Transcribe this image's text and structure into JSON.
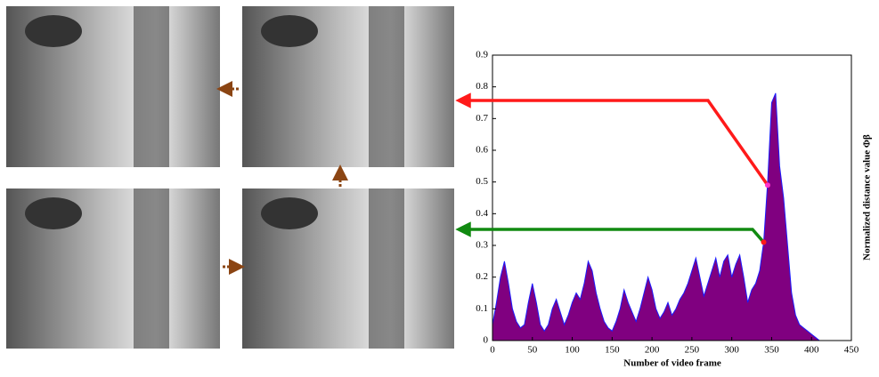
{
  "chart_data": {
    "type": "area",
    "xlabel": "Number of video frame",
    "ylabel": "Normalized distance value Φβ",
    "xlim": [
      0,
      450
    ],
    "ylim": [
      0,
      0.9
    ],
    "xticks": [
      0,
      50,
      100,
      150,
      200,
      250,
      300,
      350,
      400,
      450
    ],
    "yticks": [
      0,
      0.1,
      0.2,
      0.3,
      0.4,
      0.5,
      0.6,
      0.7,
      0.8,
      0.9
    ],
    "x": [
      0,
      5,
      10,
      15,
      20,
      25,
      30,
      35,
      40,
      45,
      50,
      55,
      60,
      65,
      70,
      75,
      80,
      85,
      90,
      95,
      100,
      105,
      110,
      115,
      120,
      125,
      130,
      135,
      140,
      145,
      150,
      155,
      160,
      165,
      170,
      175,
      180,
      185,
      190,
      195,
      200,
      205,
      210,
      215,
      220,
      225,
      230,
      235,
      240,
      245,
      250,
      255,
      260,
      265,
      270,
      275,
      280,
      285,
      290,
      295,
      300,
      305,
      310,
      315,
      320,
      325,
      330,
      335,
      340,
      345,
      350,
      355,
      360,
      365,
      370,
      375,
      380,
      385,
      390,
      395,
      400,
      405,
      410
    ],
    "series": [
      {
        "color": "#800080",
        "edge_color": "#1a1aff",
        "values": [
          0.05,
          0.12,
          0.2,
          0.25,
          0.18,
          0.1,
          0.06,
          0.04,
          0.05,
          0.12,
          0.18,
          0.12,
          0.05,
          0.03,
          0.05,
          0.1,
          0.13,
          0.09,
          0.05,
          0.08,
          0.12,
          0.15,
          0.13,
          0.18,
          0.25,
          0.22,
          0.15,
          0.1,
          0.06,
          0.04,
          0.03,
          0.06,
          0.1,
          0.16,
          0.12,
          0.09,
          0.06,
          0.1,
          0.15,
          0.2,
          0.16,
          0.1,
          0.07,
          0.09,
          0.12,
          0.08,
          0.1,
          0.13,
          0.15,
          0.18,
          0.22,
          0.26,
          0.2,
          0.14,
          0.18,
          0.22,
          0.26,
          0.2,
          0.25,
          0.27,
          0.2,
          0.24,
          0.27,
          0.2,
          0.12,
          0.16,
          0.18,
          0.22,
          0.31,
          0.5,
          0.75,
          0.78,
          0.55,
          0.45,
          0.3,
          0.15,
          0.08,
          0.05,
          0.04,
          0.03,
          0.02,
          0.01,
          0
        ]
      }
    ],
    "markers": [
      {
        "x": 345,
        "y": 0.49,
        "color": "#ff33cc",
        "arrow_color": "#ff1a1a"
      },
      {
        "x": 340,
        "y": 0.31,
        "color": "#ff1a1a",
        "arrow_color": "#118a11"
      }
    ]
  }
}
